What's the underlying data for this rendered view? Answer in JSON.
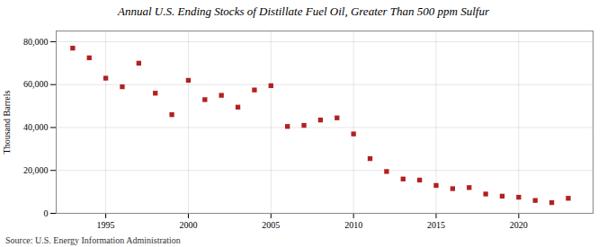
{
  "chart_data": {
    "type": "scatter",
    "title": "Annual U.S. Ending Stocks of Distillate Fuel Oil, Greater Than 500 ppm Sulfur",
    "ylabel": "Thousand Barrels",
    "source": "Source: U.S. Energy Information Administration",
    "x": [
      1993,
      1994,
      1995,
      1996,
      1997,
      1998,
      1999,
      2000,
      2001,
      2002,
      2003,
      2004,
      2005,
      2006,
      2007,
      2008,
      2009,
      2010,
      2011,
      2012,
      2013,
      2014,
      2015,
      2016,
      2017,
      2018,
      2019,
      2020,
      2021,
      2022,
      2023
    ],
    "values": [
      77000,
      72500,
      63000,
      59000,
      70000,
      56000,
      46000,
      62000,
      53000,
      55000,
      49500,
      57500,
      59500,
      40500,
      41000,
      43500,
      44500,
      37000,
      25500,
      19500,
      16000,
      15500,
      13000,
      11500,
      12000,
      9000,
      8000,
      7500,
      6000,
      5000,
      7000
    ],
    "color": "#b22020",
    "marker": "square",
    "xlim": [
      1992.0,
      2024.5
    ],
    "xticks": [
      1995,
      2000,
      2005,
      2010,
      2015,
      2020
    ],
    "ylim": [
      0,
      85000
    ],
    "yticks": [
      0,
      {
        "value": 20000,
        "label": "20,000"
      },
      {
        "value": 40000,
        "label": "40,000"
      },
      {
        "value": 60000,
        "label": "60,000"
      },
      {
        "value": 80000,
        "label": "80,000"
      }
    ],
    "grid": true
  }
}
